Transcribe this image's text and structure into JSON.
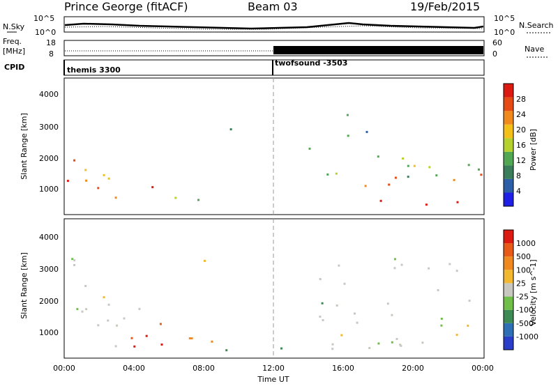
{
  "header": {
    "station": "Prince George (fitACF)",
    "beam": "Beam 03",
    "date": "19/Feb/2015"
  },
  "top_panel": {
    "left_label": "N.Sky",
    "left_ticks": [
      "10^5",
      "10^0"
    ],
    "right_label": "N.Search",
    "right_ticks": [
      "10^5",
      "10^0"
    ]
  },
  "freq_panel": {
    "left_label_1": "Freq.",
    "left_label_2": "[MHz]",
    "left_ticks": [
      "18",
      "8"
    ],
    "right_label": "Nave",
    "right_ticks": [
      "60",
      "0"
    ]
  },
  "cpid": {
    "label": "CPID",
    "seg1": "themis 3300",
    "seg2": "twofsound -3503"
  },
  "axes": {
    "ylabel": "Slant Range [km]",
    "yticks": [
      "1000",
      "2000",
      "3000",
      "4000"
    ],
    "xticks": [
      "00:00",
      "04:00",
      "08:00",
      "12:00",
      "16:00",
      "20:00",
      "00:00"
    ],
    "xlabel": "Time UT"
  },
  "power_scale": {
    "label": "Power [dB]",
    "ticks": [
      "28",
      "24",
      "20",
      "16",
      "12",
      "8",
      "4"
    ],
    "colors": [
      "#1f1fe6",
      "#2d5fa8",
      "#3a7d5a",
      "#52a852",
      "#b5d12e",
      "#f2c018",
      "#f08a1c",
      "#e64a15",
      "#dd1a12"
    ]
  },
  "velocity_scale": {
    "label": "Velocity [m s^-1]",
    "ticks": [
      "1000",
      "500",
      "100",
      "25",
      "-25",
      "-100",
      "-500",
      "-1000"
    ],
    "colors": [
      "#2a3ec9",
      "#2f6fb5",
      "#3d8a55",
      "#6fbf4a",
      "#c8c8c0",
      "#f2b830",
      "#f08a20",
      "#e85a18",
      "#dd1a12"
    ]
  },
  "chart_data": {
    "type": "heatmap",
    "x_range_hours": [
      0,
      24
    ],
    "y_range_km": [
      180,
      4500
    ],
    "power_blobs": [
      {
        "t0": 0.2,
        "t1": 4.3,
        "r0": 600,
        "r1": 2100,
        "level": 0.8
      },
      {
        "t0": 0.1,
        "t1": 1.2,
        "r0": 600,
        "r1": 1300,
        "level": 0.95
      },
      {
        "t0": 4.8,
        "t1": 6.4,
        "r0": 700,
        "r1": 1500,
        "level": 0.85
      },
      {
        "t0": 5.8,
        "t1": 8.5,
        "r0": 500,
        "r1": 1000,
        "level": 0.45
      },
      {
        "t0": 7.5,
        "t1": 9.5,
        "r0": 2700,
        "r1": 3200,
        "level": 0.4
      },
      {
        "t0": 13.8,
        "t1": 16.0,
        "r0": 1000,
        "r1": 2400,
        "level": 0.5
      },
      {
        "t0": 16.0,
        "t1": 24.0,
        "r0": 1300,
        "r1": 2300,
        "level": 0.45
      },
      {
        "t0": 17.0,
        "t1": 24.0,
        "r0": 900,
        "r1": 1500,
        "level": 0.75
      },
      {
        "t0": 18.0,
        "t1": 24.0,
        "r0": 450,
        "r1": 900,
        "level": 0.95
      },
      {
        "t0": 15.0,
        "t1": 17.5,
        "r0": 2600,
        "r1": 3500,
        "level": 0.3
      }
    ],
    "velocity_blobs": [
      {
        "t0": 0.2,
        "t1": 4.3,
        "r0": 300,
        "r1": 3500,
        "level": 0.0
      },
      {
        "t0": 2.0,
        "t1": 5.0,
        "r0": 400,
        "r1": 1400,
        "level": -0.8
      },
      {
        "t0": 4.8,
        "t1": 6.4,
        "r0": 500,
        "r1": 1600,
        "level": -0.9
      },
      {
        "t0": 6.0,
        "t1": 8.5,
        "r0": 400,
        "r1": 1300,
        "level": -0.5
      },
      {
        "t0": 7.5,
        "t1": 9.5,
        "r0": 2800,
        "r1": 3400,
        "level": 0.0
      },
      {
        "t0": 8.0,
        "t1": 12.5,
        "r0": 150,
        "r1": 500,
        "level": 0.3
      },
      {
        "t0": 13.8,
        "t1": 15.0,
        "r0": 1200,
        "r1": 2300,
        "level": 0.6
      },
      {
        "t0": 14.5,
        "t1": 24.0,
        "r0": 400,
        "r1": 3400,
        "level": 0.0
      }
    ]
  }
}
